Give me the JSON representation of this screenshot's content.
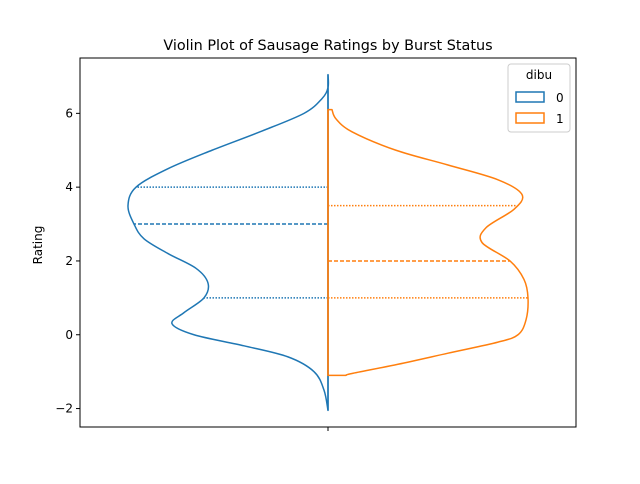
{
  "chart_data": {
    "type": "violin",
    "title": "Violin Plot of Sausage Ratings by Burst Status",
    "xlabel": "",
    "ylabel": "Rating",
    "ylim": [
      -2.5,
      7.5
    ],
    "yticks": [
      -2,
      0,
      2,
      4,
      6
    ],
    "ytick_labels": [
      "−2",
      "0",
      "2",
      "4",
      "6"
    ],
    "split": true,
    "grid": false,
    "legend": {
      "title": "dibu",
      "placement": "top-right",
      "entries": [
        "0",
        "1"
      ]
    },
    "series": [
      {
        "name": "0",
        "side": "left",
        "color": "#1f77b4",
        "y_range": [
          -2.05,
          7.05
        ],
        "quartiles": {
          "q1": 1.0,
          "median": 3.0,
          "q3": 4.0
        },
        "density_profile": [
          {
            "y": -2.05,
            "w": 0.0
          },
          {
            "y": -1.5,
            "w": 0.02
          },
          {
            "y": -1.0,
            "w": 0.07
          },
          {
            "y": -0.6,
            "w": 0.2
          },
          {
            "y": -0.3,
            "w": 0.42
          },
          {
            "y": 0.0,
            "w": 0.67
          },
          {
            "y": 0.3,
            "w": 0.78
          },
          {
            "y": 0.6,
            "w": 0.72
          },
          {
            "y": 1.0,
            "w": 0.62
          },
          {
            "y": 1.4,
            "w": 0.6
          },
          {
            "y": 1.8,
            "w": 0.66
          },
          {
            "y": 2.2,
            "w": 0.8
          },
          {
            "y": 2.6,
            "w": 0.92
          },
          {
            "y": 3.0,
            "w": 0.97
          },
          {
            "y": 3.5,
            "w": 1.0
          },
          {
            "y": 4.0,
            "w": 0.96
          },
          {
            "y": 4.5,
            "w": 0.8
          },
          {
            "y": 5.0,
            "w": 0.58
          },
          {
            "y": 5.5,
            "w": 0.34
          },
          {
            "y": 6.0,
            "w": 0.12
          },
          {
            "y": 6.4,
            "w": 0.03
          },
          {
            "y": 6.7,
            "w": 0.0
          },
          {
            "y": 7.05,
            "w": 0.0
          }
        ]
      },
      {
        "name": "1",
        "side": "right",
        "color": "#ff7f0e",
        "y_range": [
          -1.1,
          6.1
        ],
        "quartiles": {
          "q1": 1.0,
          "median": 2.0,
          "q3": 3.5
        },
        "density_profile": [
          {
            "y": -1.1,
            "w": 0.09
          },
          {
            "y": -1.05,
            "w": 0.12
          },
          {
            "y": -0.8,
            "w": 0.35
          },
          {
            "y": -0.5,
            "w": 0.6
          },
          {
            "y": -0.2,
            "w": 0.85
          },
          {
            "y": 0.0,
            "w": 0.95
          },
          {
            "y": 0.4,
            "w": 0.99
          },
          {
            "y": 1.0,
            "w": 1.0
          },
          {
            "y": 1.5,
            "w": 0.98
          },
          {
            "y": 2.0,
            "w": 0.91
          },
          {
            "y": 2.5,
            "w": 0.77
          },
          {
            "y": 2.9,
            "w": 0.79
          },
          {
            "y": 3.4,
            "w": 0.93
          },
          {
            "y": 3.8,
            "w": 0.97
          },
          {
            "y": 4.2,
            "w": 0.85
          },
          {
            "y": 4.6,
            "w": 0.6
          },
          {
            "y": 5.0,
            "w": 0.34
          },
          {
            "y": 5.5,
            "w": 0.12
          },
          {
            "y": 5.85,
            "w": 0.04
          },
          {
            "y": 6.1,
            "w": 0.02
          }
        ]
      }
    ]
  }
}
